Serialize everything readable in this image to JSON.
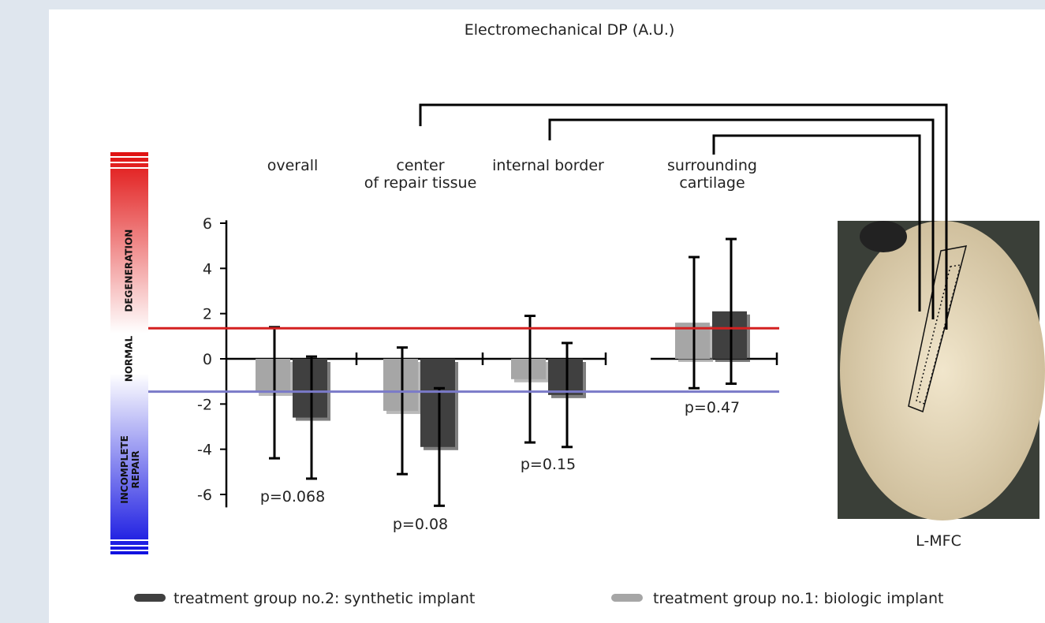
{
  "chart_data": {
    "type": "bar",
    "title": "Electromechanical DP (A.U.)",
    "categories": [
      "overall",
      "center\nof repair tissue",
      "internal border",
      "surrounding\ncartilage"
    ],
    "series": [
      {
        "name": "treatment group no.1: biologic implant",
        "color": "#a6a6a6",
        "values": [
          -1.5,
          -2.3,
          -0.9,
          1.6
        ],
        "errors": [
          2.9,
          2.8,
          2.8,
          2.9
        ]
      },
      {
        "name": "treatment group no.2: synthetic implant",
        "color": "#404040",
        "values": [
          -2.6,
          -3.9,
          -1.6,
          2.1
        ],
        "errors": [
          2.7,
          2.6,
          2.3,
          3.2
        ]
      }
    ],
    "annotations": [
      "p=0.068",
      "p=0.08",
      "p=0.15",
      "p=0.47"
    ],
    "reference_lines": [
      {
        "value": 1.35,
        "color": "#d42020"
      },
      {
        "value": -1.45,
        "color": "#7a7ac8"
      }
    ],
    "scale_labels": [
      "DEGENERATION",
      "NORMAL",
      "INCOMPLETE\nREPAIR"
    ],
    "image_label": "L-MFC",
    "ylim": [
      -6.5,
      6.3
    ],
    "yticks": [
      -6,
      -4,
      -2,
      0,
      2,
      4,
      6
    ]
  }
}
